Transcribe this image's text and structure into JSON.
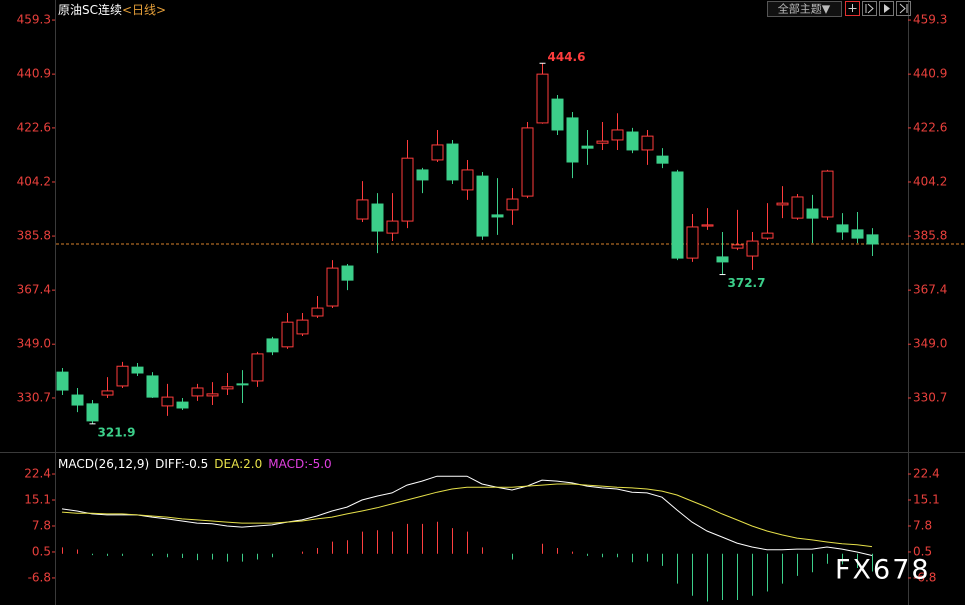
{
  "toolbar": {
    "theme_button": "全部主题▼"
  },
  "watermark": "FX678",
  "chart_data": [
    {
      "type": "candlestick",
      "title": "原油SC连续",
      "period": "<日线>",
      "up_color": "#ff3c3c",
      "down_color": "#3ccf8a",
      "last_line_color": "#d9822b",
      "ylim": [
        313.0,
        461.7
      ],
      "yticks": [
        459.3,
        440.9,
        422.6,
        404.2,
        385.8,
        367.4,
        {
          "value": 349.0,
          "label": "349.0"
        },
        330.7
      ],
      "open": [
        339.5,
        331.7,
        328.7,
        331.7,
        334.8,
        341.2,
        338.2,
        328.0,
        329.3,
        331.4,
        331.4,
        333.8,
        335.5,
        336.5,
        350.8,
        348.1,
        352.5,
        358.6,
        362.0,
        375.6,
        391.6,
        396.7,
        386.8,
        390.9,
        408.3,
        411.7,
        417.1,
        401.5,
        406.2,
        393.0,
        394.7,
        399.4,
        424.3,
        432.4,
        426.0,
        416.4,
        417.4,
        418.5,
        421.2,
        415.1,
        413.0,
        407.6,
        378.3,
        389.2,
        378.7,
        381.7,
        379.0,
        385.1,
        396.4,
        391.9,
        395.0,
        392.3,
        389.6,
        387.9,
        386.2
      ],
      "high": [
        340.9,
        334.1,
        330.0,
        337.8,
        343.0,
        342.6,
        339.5,
        335.5,
        330.7,
        335.5,
        336.1,
        339.2,
        340.2,
        346.4,
        351.5,
        359.6,
        359.6,
        365.4,
        377.6,
        376.3,
        404.5,
        400.4,
        400.4,
        418.5,
        409.0,
        421.9,
        418.5,
        411.7,
        407.6,
        405.5,
        402.1,
        424.6,
        444.6,
        433.8,
        428.0,
        421.9,
        424.6,
        427.6,
        422.6,
        421.9,
        415.7,
        408.3,
        393.3,
        395.3,
        387.2,
        394.7,
        387.2,
        397.0,
        402.8,
        400.1,
        399.8,
        408.3,
        393.6,
        394.0,
        388.5
      ],
      "low": [
        331.7,
        325.9,
        321.9,
        330.7,
        334.1,
        338.2,
        330.7,
        324.6,
        326.6,
        329.7,
        328.3,
        331.7,
        329.0,
        334.5,
        345.3,
        347.4,
        351.8,
        357.9,
        361.3,
        367.4,
        390.6,
        380.0,
        384.1,
        388.5,
        400.4,
        411.0,
        403.5,
        398.1,
        384.5,
        386.2,
        389.6,
        398.7,
        424.0,
        420.2,
        405.5,
        410.0,
        415.1,
        415.1,
        414.0,
        410.0,
        408.9,
        377.6,
        377.0,
        387.9,
        372.7,
        381.0,
        374.3,
        384.5,
        391.9,
        391.3,
        383.4,
        391.3,
        384.5,
        383.4,
        379.0
      ],
      "close": [
        333.4,
        328.3,
        322.9,
        333.1,
        341.5,
        339.2,
        331.0,
        331.0,
        327.3,
        334.1,
        332.1,
        334.5,
        335.2,
        345.7,
        346.4,
        356.5,
        357.2,
        361.3,
        374.9,
        370.8,
        398.1,
        387.5,
        390.9,
        412.3,
        404.9,
        416.8,
        404.9,
        408.3,
        385.8,
        392.3,
        398.4,
        422.6,
        440.9,
        421.9,
        411.0,
        415.7,
        418.1,
        421.9,
        415.1,
        419.8,
        410.6,
        378.3,
        388.9,
        389.6,
        377.0,
        382.8,
        384.1,
        386.8,
        397.0,
        399.1,
        391.9,
        407.9,
        387.2,
        385.1,
        383.1
      ],
      "high_labels": [
        null,
        null,
        null,
        null,
        null,
        null,
        null,
        null,
        null,
        null,
        null,
        null,
        null,
        null,
        null,
        null,
        null,
        null,
        null,
        null,
        null,
        null,
        null,
        null,
        null,
        null,
        null,
        null,
        null,
        null,
        null,
        null,
        "444.6",
        null,
        null,
        null,
        null,
        null,
        null,
        null,
        null,
        null,
        null,
        null,
        null,
        null,
        null,
        null,
        null,
        null,
        null,
        null,
        null,
        null,
        null
      ],
      "low_labels": [
        null,
        null,
        "321.9",
        null,
        null,
        null,
        null,
        null,
        null,
        null,
        null,
        null,
        null,
        null,
        null,
        null,
        null,
        null,
        null,
        null,
        null,
        null,
        null,
        null,
        null,
        null,
        null,
        null,
        null,
        null,
        null,
        null,
        null,
        null,
        null,
        null,
        null,
        null,
        null,
        null,
        null,
        null,
        null,
        null,
        "372.7",
        null,
        null,
        null,
        null,
        null,
        null,
        null,
        null,
        null,
        null
      ]
    },
    {
      "type": "macd",
      "title": "MACD(26,12,9)",
      "ylim": [
        -14.4,
        26.9
      ],
      "yticks": [
        22.4,
        15.1,
        7.8,
        0.5,
        -6.8
      ],
      "series": [
        {
          "name": "DIFF:",
          "color": "#ffffff",
          "last_label": "-0.5",
          "values": [
            12.6,
            12.0,
            11.2,
            10.9,
            10.9,
            10.9,
            10.3,
            9.8,
            9.2,
            8.6,
            8.4,
            7.8,
            7.5,
            7.8,
            8.1,
            8.9,
            9.5,
            10.6,
            12.0,
            13.1,
            15.1,
            16.2,
            17.1,
            19.3,
            20.4,
            21.8,
            21.8,
            21.8,
            19.6,
            18.7,
            17.9,
            19.0,
            20.7,
            20.4,
            19.9,
            19.0,
            18.5,
            18.2,
            17.3,
            17.1,
            15.9,
            12.3,
            8.9,
            6.4,
            4.7,
            3.0,
            1.9,
            1.1,
            1.1,
            1.3,
            1.3,
            1.9,
            1.3,
            0.5,
            -0.5
          ]
        },
        {
          "name": "DEA:",
          "color": "#e6e04a",
          "last_label": "2.0",
          "values": [
            11.7,
            11.4,
            11.4,
            11.2,
            11.2,
            10.9,
            10.6,
            10.3,
            9.8,
            9.5,
            9.2,
            8.9,
            8.6,
            8.6,
            8.6,
            8.9,
            9.2,
            9.8,
            10.3,
            11.2,
            12.0,
            12.9,
            14.0,
            15.1,
            16.2,
            17.3,
            18.2,
            18.7,
            18.7,
            18.7,
            18.7,
            19.0,
            19.3,
            19.6,
            19.6,
            19.3,
            19.0,
            18.7,
            18.5,
            18.2,
            17.6,
            16.5,
            14.8,
            13.1,
            11.2,
            9.5,
            7.8,
            6.4,
            5.3,
            4.4,
            3.9,
            3.3,
            2.8,
            2.5,
            2.0
          ]
        },
        {
          "name": "MACD:",
          "color": "#e040e0",
          "last_label": "-5.0",
          "up_color": "#ff4040",
          "down_color": "#3ccf8a",
          "values": [
            1.8,
            1.2,
            -0.4,
            -0.6,
            -0.6,
            0.0,
            -0.6,
            -1.0,
            -1.2,
            -1.8,
            -1.6,
            -2.2,
            -2.2,
            -1.6,
            -1.0,
            0.0,
            0.6,
            1.6,
            3.4,
            3.8,
            6.2,
            6.6,
            6.2,
            8.4,
            8.4,
            9.0,
            7.2,
            6.2,
            1.8,
            0.0,
            -1.6,
            0.0,
            2.8,
            1.6,
            0.6,
            -0.6,
            -1.0,
            -1.0,
            -2.4,
            -2.2,
            -3.4,
            -8.4,
            -11.8,
            -13.4,
            -13.0,
            -13.0,
            -11.8,
            -10.6,
            -8.4,
            -6.2,
            -5.2,
            -2.8,
            -3.0,
            -4.0,
            -5.0
          ]
        }
      ]
    }
  ]
}
